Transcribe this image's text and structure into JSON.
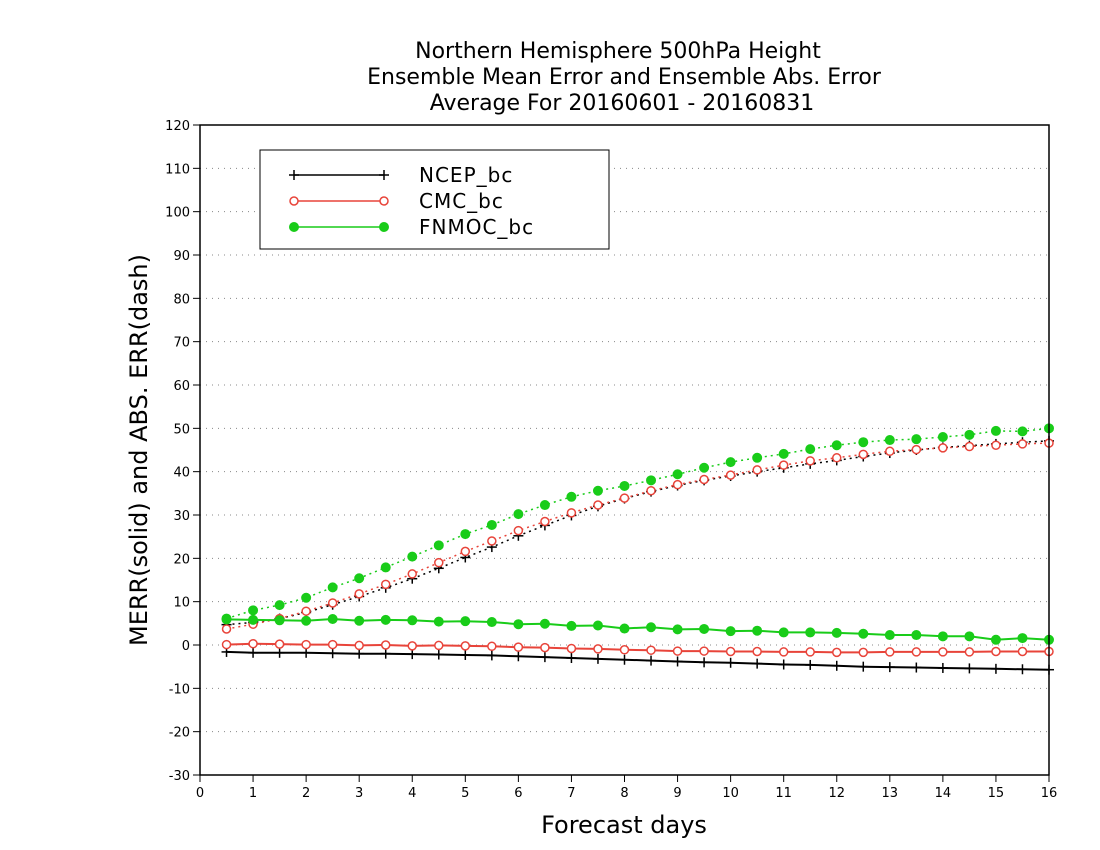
{
  "chart_data": {
    "type": "line",
    "title": [
      "Northern Hemisphere 500hPa Height",
      "Ensemble Mean Error and Ensemble Abs. Error",
      "Average For 20160601 - 20160831"
    ],
    "xlabel": "Forecast days",
    "ylabel": "MERR(solid) and ABS. ERR(dash)",
    "xlim": [
      0,
      16
    ],
    "ylim": [
      -30,
      120
    ],
    "xticks": [
      0,
      1,
      2,
      3,
      4,
      5,
      6,
      7,
      8,
      9,
      10,
      11,
      12,
      13,
      14,
      15,
      16
    ],
    "yticks": [
      -30,
      -20,
      -10,
      0,
      10,
      20,
      30,
      40,
      50,
      60,
      70,
      80,
      90,
      100,
      110,
      120
    ],
    "grid": "horizontal dotted",
    "legend_position": "top-left",
    "x": [
      0.5,
      1,
      1.5,
      2,
      2.5,
      3,
      3.5,
      4,
      4.5,
      5,
      5.5,
      6,
      6.5,
      7,
      7.5,
      8,
      8.5,
      9,
      9.5,
      10,
      10.5,
      11,
      11.5,
      12,
      12.5,
      13,
      13.5,
      14,
      14.5,
      15,
      15.5,
      16
    ],
    "series": [
      {
        "name": "NCEP_bc",
        "color": "#000000",
        "marker": "plus",
        "merr": [
          -1.6,
          -1.8,
          -1.8,
          -1.8,
          -1.9,
          -2,
          -2,
          -2.1,
          -2.2,
          -2.3,
          -2.4,
          -2.6,
          -2.8,
          -3,
          -3.2,
          -3.4,
          -3.6,
          -3.8,
          -4.0,
          -4.1,
          -4.3,
          -4.5,
          -4.6,
          -4.8,
          -5.0,
          -5.1,
          -5.2,
          -5.3,
          -5.4,
          -5.5,
          -5.6,
          -5.7
        ],
        "abs_err": [
          4.7,
          5.2,
          6.1,
          7.5,
          9.3,
          11.2,
          13.2,
          15.3,
          17.7,
          20.2,
          22.6,
          25.2,
          27.6,
          29.9,
          32.0,
          33.8,
          35.4,
          36.8,
          38.0,
          39.0,
          40.0,
          40.9,
          41.8,
          42.6,
          43.5,
          44.3,
          45.0,
          45.6,
          46.0,
          46.4,
          46.8,
          47.1
        ]
      },
      {
        "name": "CMC_bc",
        "color": "#e8443a",
        "marker": "open-circle",
        "merr": [
          0.1,
          0.3,
          0.2,
          0.1,
          0.1,
          -0.1,
          0,
          -0.2,
          -0.1,
          -0.2,
          -0.3,
          -0.5,
          -0.6,
          -0.8,
          -0.9,
          -1.1,
          -1.2,
          -1.4,
          -1.4,
          -1.5,
          -1.5,
          -1.6,
          -1.6,
          -1.7,
          -1.7,
          -1.6,
          -1.6,
          -1.6,
          -1.6,
          -1.5,
          -1.5,
          -1.5
        ],
        "abs_err": [
          3.7,
          4.8,
          6.1,
          7.8,
          9.7,
          11.8,
          14.0,
          16.4,
          19.0,
          21.6,
          24.0,
          26.4,
          28.5,
          30.5,
          32.3,
          33.9,
          35.6,
          37.0,
          38.2,
          39.2,
          40.4,
          41.5,
          42.5,
          43.2,
          44.0,
          44.7,
          45.1,
          45.5,
          45.8,
          46.1,
          46.4,
          46.6
        ]
      },
      {
        "name": "FNMOC_bc",
        "color": "#19cc19",
        "marker": "filled-circle",
        "merr": [
          5.9,
          5.8,
          5.7,
          5.6,
          6.0,
          5.6,
          5.8,
          5.7,
          5.4,
          5.5,
          5.3,
          4.8,
          4.9,
          4.4,
          4.5,
          3.8,
          4.1,
          3.6,
          3.7,
          3.2,
          3.3,
          2.9,
          2.9,
          2.8,
          2.6,
          2.3,
          2.3,
          2.0,
          2.0,
          1.2,
          1.6,
          1.2
        ],
        "abs_err": [
          6.1,
          8.0,
          9.2,
          10.9,
          13.3,
          15.4,
          17.9,
          20.4,
          23.0,
          25.6,
          27.7,
          30.2,
          32.3,
          34.2,
          35.6,
          36.7,
          38.0,
          39.4,
          40.9,
          42.2,
          43.2,
          44.1,
          45.2,
          46.1,
          46.8,
          47.3,
          47.5,
          48.0,
          48.5,
          49.4,
          49.3,
          50.0
        ]
      }
    ]
  }
}
